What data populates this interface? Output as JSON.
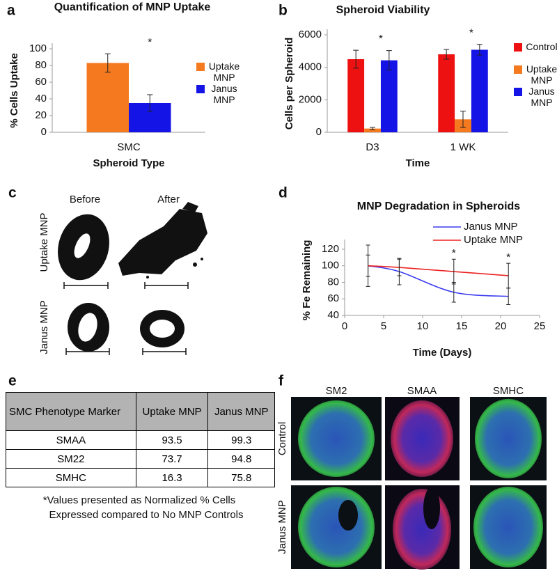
{
  "chart_data": [
    {
      "type": "bar",
      "panel": "a",
      "title": "Quantification of MNP Uptake",
      "xlabel": "Spheroid Type",
      "ylabel": "% Cells Uptake",
      "categories": [
        "SMC"
      ],
      "series": [
        {
          "name": "Uptake MNP",
          "color": "#f57a1f",
          "values": [
            83
          ],
          "errors": [
            11
          ]
        },
        {
          "name": "Janus MNP",
          "color": "#1414e6",
          "values": [
            35
          ],
          "errors": [
            10
          ]
        }
      ],
      "significance": [
        "*"
      ],
      "ylim": [
        0,
        100
      ],
      "yticks": [
        0,
        20,
        40,
        60,
        80,
        100
      ],
      "legend": "right"
    },
    {
      "type": "bar",
      "panel": "b",
      "title": "Spheroid Viability",
      "xlabel": "Time",
      "ylabel": "Cells per Spheroid",
      "categories": [
        "D3",
        "1 WK"
      ],
      "series": [
        {
          "name": "Control",
          "color": "#ee1111",
          "values": [
            4500,
            4800
          ],
          "errors": [
            550,
            300
          ]
        },
        {
          "name": "Uptake MNP",
          "color": "#f57a1f",
          "values": [
            230,
            800
          ],
          "errors": [
            70,
            500
          ]
        },
        {
          "name": "Janus MNP",
          "color": "#1414e6",
          "values": [
            4430,
            5080
          ],
          "errors": [
            600,
            330
          ]
        }
      ],
      "significance": [
        "*",
        "*"
      ],
      "ylim": [
        0,
        6000
      ],
      "yticks": [
        0,
        2000,
        4000,
        6000
      ],
      "legend": "right"
    },
    {
      "type": "line",
      "panel": "d",
      "title": "MNP Degradation in Spheroids",
      "xlabel": "Time (Days)",
      "ylabel": "% Fe Remaining",
      "x": [
        3,
        7,
        14,
        21
      ],
      "series": [
        {
          "name": "Janus MNP",
          "color": "#3b3bf0",
          "values": [
            100,
            93,
            68,
            63
          ],
          "errors": [
            25,
            16,
            12,
            10
          ]
        },
        {
          "name": "Uptake MNP",
          "color": "#ee2222",
          "values": [
            100,
            98,
            93,
            88
          ],
          "errors": [
            13,
            10,
            15,
            15
          ]
        }
      ],
      "significance": [
        null,
        null,
        "*",
        "*"
      ],
      "xlim": [
        0,
        25
      ],
      "xticks": [
        0,
        5,
        10,
        15,
        20,
        25
      ],
      "ylim": [
        40,
        125
      ],
      "yticks": [
        40,
        60,
        80,
        100,
        120
      ],
      "legend": "upper right"
    }
  ],
  "panel_c": {
    "letter": "c",
    "columns": [
      "Before",
      "After"
    ],
    "rows": [
      "Uptake MNP",
      "Janus MNP"
    ]
  },
  "panel_e": {
    "letter": "e",
    "table": {
      "header": [
        "SMC Phenotype Marker",
        "Uptake MNP",
        "Janus MNP"
      ],
      "rows": [
        [
          "SMAA",
          93.5,
          99.3
        ],
        [
          "SM22",
          73.7,
          94.8
        ],
        [
          "SMHC",
          16.3,
          75.8
        ]
      ]
    },
    "note": [
      "*Values presented as Normalized % Cells",
      "Expressed compared to No MNP Controls"
    ]
  },
  "panel_f": {
    "letter": "f",
    "columns": [
      "SM2",
      "SMAA",
      "SMHC"
    ],
    "rows": [
      "Control",
      "Janus MNP"
    ]
  }
}
